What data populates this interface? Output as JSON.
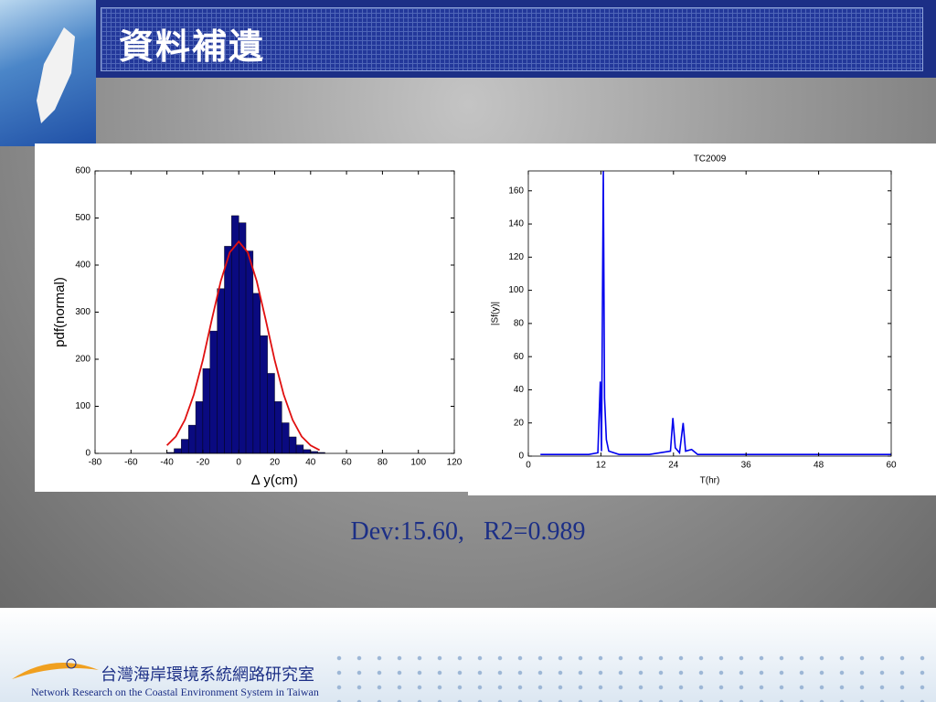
{
  "header": {
    "title": "資料補遺"
  },
  "chart_data": [
    {
      "type": "histogram",
      "xlabel": "∆ y(cm)",
      "ylabel": "pdf(normal)",
      "color": "#0a0a80",
      "bins": [
        -40,
        -36,
        -32,
        -28,
        -24,
        -20,
        -16,
        -12,
        -8,
        -4,
        0,
        4,
        8,
        12,
        16,
        20,
        24,
        28,
        32,
        36,
        40,
        44,
        48
      ],
      "values": [
        2,
        10,
        30,
        60,
        110,
        180,
        260,
        350,
        440,
        505,
        490,
        430,
        340,
        250,
        170,
        110,
        65,
        35,
        18,
        8,
        4,
        2
      ],
      "curve": {
        "color": "#e01010",
        "x": [
          -40,
          -35,
          -30,
          -25,
          -20,
          -15,
          -10,
          -5,
          0,
          5,
          10,
          15,
          20,
          25,
          30,
          35,
          40,
          45
        ],
        "values": [
          17,
          36,
          71,
          125,
          198,
          284,
          366,
          427,
          450,
          427,
          366,
          284,
          198,
          125,
          71,
          36,
          17,
          7
        ]
      },
      "xlim": [
        -80,
        120
      ],
      "xticks": [
        -80,
        -60,
        -40,
        -20,
        0,
        20,
        40,
        60,
        80,
        100,
        120
      ],
      "ylim": [
        0,
        600
      ],
      "yticks": [
        0,
        100,
        200,
        300,
        400,
        500,
        600
      ]
    },
    {
      "type": "line",
      "title": "TC2009",
      "xlabel": "T(hr)",
      "ylabel": "|Sf(y)|",
      "x": [
        2,
        4,
        6,
        8,
        10,
        11.5,
        11.9,
        12.1,
        12.4,
        12.6,
        12.9,
        13.3,
        15,
        20,
        23.5,
        23.9,
        24.3,
        25,
        25.6,
        26,
        27,
        28,
        36,
        48,
        55,
        60
      ],
      "series": [
        {
          "color": "#0000ee",
          "values": [
            1,
            1,
            1,
            1,
            1,
            2,
            45,
            3,
            172,
            35,
            10,
            3,
            1,
            1,
            3,
            23,
            5,
            2,
            20,
            3,
            4,
            1,
            1,
            1,
            1,
            1
          ]
        }
      ],
      "xlim": [
        0,
        60
      ],
      "xticks": [
        0,
        12,
        24,
        36,
        48,
        60
      ],
      "ylim": [
        0,
        172
      ],
      "yticks": [
        0,
        20,
        40,
        60,
        80,
        100,
        120,
        140,
        160
      ]
    }
  ],
  "caption": "Dev:15.60,   R2=0.989",
  "footer": {
    "name": "台灣海岸環境系統網路研究室",
    "english": "Network Research on the Coastal Environment System in Taiwan"
  }
}
